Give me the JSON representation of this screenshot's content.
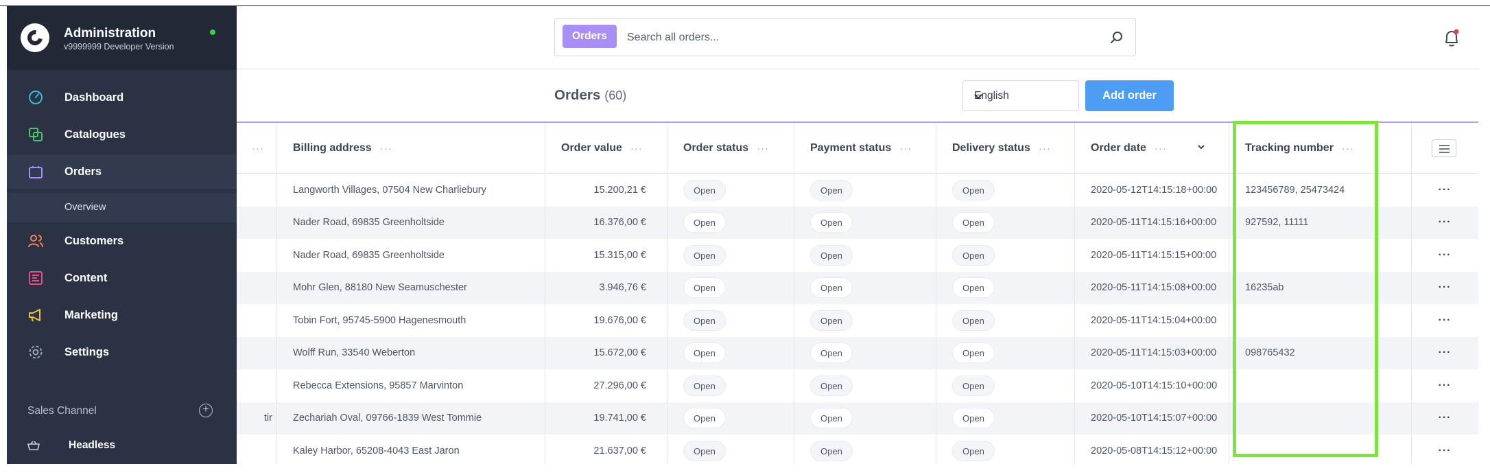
{
  "sidebar": {
    "title": "Administration",
    "version": "v9999999 Developer Version",
    "items": [
      {
        "label": "Dashboard",
        "icon": "gauge-icon",
        "color": "#3ab8d8"
      },
      {
        "label": "Catalogues",
        "icon": "catalogue-icon",
        "color": "#4ec46b"
      },
      {
        "label": "Orders",
        "icon": "shopping-bag-icon",
        "color": "#a88ef5"
      },
      {
        "label": "Customers",
        "icon": "users-icon",
        "color": "#f2815a"
      },
      {
        "label": "Content",
        "icon": "content-icon",
        "color": "#ea4c89"
      },
      {
        "label": "Marketing",
        "icon": "megaphone-icon",
        "color": "#f5c12e"
      },
      {
        "label": "Settings",
        "icon": "gear-icon",
        "color": "#9aa4b5"
      }
    ],
    "sub_item": "Overview",
    "sales_channel_title": "Sales Channel",
    "sales_channel_item": "Headless"
  },
  "search": {
    "tag": "Orders",
    "placeholder": "Search all orders..."
  },
  "smartbar": {
    "title": "Orders",
    "count": "(60)",
    "language": "English",
    "add_button": "Add order"
  },
  "grid": {
    "headers": {
      "billing": "Billing address",
      "value": "Order value",
      "order_status": "Order status",
      "payment_status": "Payment status",
      "delivery_status": "Delivery status",
      "order_date": "Order date",
      "tracking": "Tracking number"
    },
    "rows": [
      {
        "partial": "",
        "billing": "Langworth Villages, 07504 New Charliebury",
        "value": "15.200,21 €",
        "order_status": "Open",
        "payment_status": "Open",
        "delivery_status": "Open",
        "date": "2020-05-12T14:15:18+00:00",
        "tracking": "123456789, 25473424"
      },
      {
        "partial": "",
        "billing": "Nader Road, 69835 Greenholtside",
        "value": "16.376,00 €",
        "order_status": "Open",
        "payment_status": "Open",
        "delivery_status": "Open",
        "date": "2020-05-11T14:15:16+00:00",
        "tracking": "927592, 11111"
      },
      {
        "partial": "",
        "billing": "Nader Road, 69835 Greenholtside",
        "value": "15.315,00 €",
        "order_status": "Open",
        "payment_status": "Open",
        "delivery_status": "Open",
        "date": "2020-05-11T14:15:15+00:00",
        "tracking": ""
      },
      {
        "partial": "",
        "billing": "Mohr Glen, 88180 New Seamuschester",
        "value": "3.946,76 €",
        "order_status": "Open",
        "payment_status": "Open",
        "delivery_status": "Open",
        "date": "2020-05-11T14:15:08+00:00",
        "tracking": "16235ab"
      },
      {
        "partial": "",
        "billing": "Tobin Fort, 95745-5900 Hagenesmouth",
        "value": "19.676,00 €",
        "order_status": "Open",
        "payment_status": "Open",
        "delivery_status": "Open",
        "date": "2020-05-11T14:15:04+00:00",
        "tracking": ""
      },
      {
        "partial": "",
        "billing": "Wolff Run, 33540 Weberton",
        "value": "15.672,00 €",
        "order_status": "Open",
        "payment_status": "Open",
        "delivery_status": "Open",
        "date": "2020-05-11T14:15:03+00:00",
        "tracking": "098765432"
      },
      {
        "partial": "",
        "billing": "Rebecca Extensions, 95857 Marvinton",
        "value": "27.296,00 €",
        "order_status": "Open",
        "payment_status": "Open",
        "delivery_status": "Open",
        "date": "2020-05-10T14:15:10+00:00",
        "tracking": ""
      },
      {
        "partial": "tir",
        "billing": "Zechariah Oval, 09766-1839 West Tommie",
        "value": "19.741,00 €",
        "order_status": "Open",
        "payment_status": "Open",
        "delivery_status": "Open",
        "date": "2020-05-10T14:15:07+00:00",
        "tracking": ""
      },
      {
        "partial": "",
        "billing": "Kaley Harbor, 65208-4043 East Jaron",
        "value": "21.637,00 €",
        "order_status": "Open",
        "payment_status": "Open",
        "delivery_status": "Open",
        "date": "2020-05-08T14:15:12+00:00",
        "tracking": ""
      }
    ]
  },
  "colors": {
    "sidebar_bg": "#2b3244",
    "accent_purple": "#a88ef5",
    "primary_blue": "#4e9df5",
    "highlight_green": "#7ee33c"
  }
}
